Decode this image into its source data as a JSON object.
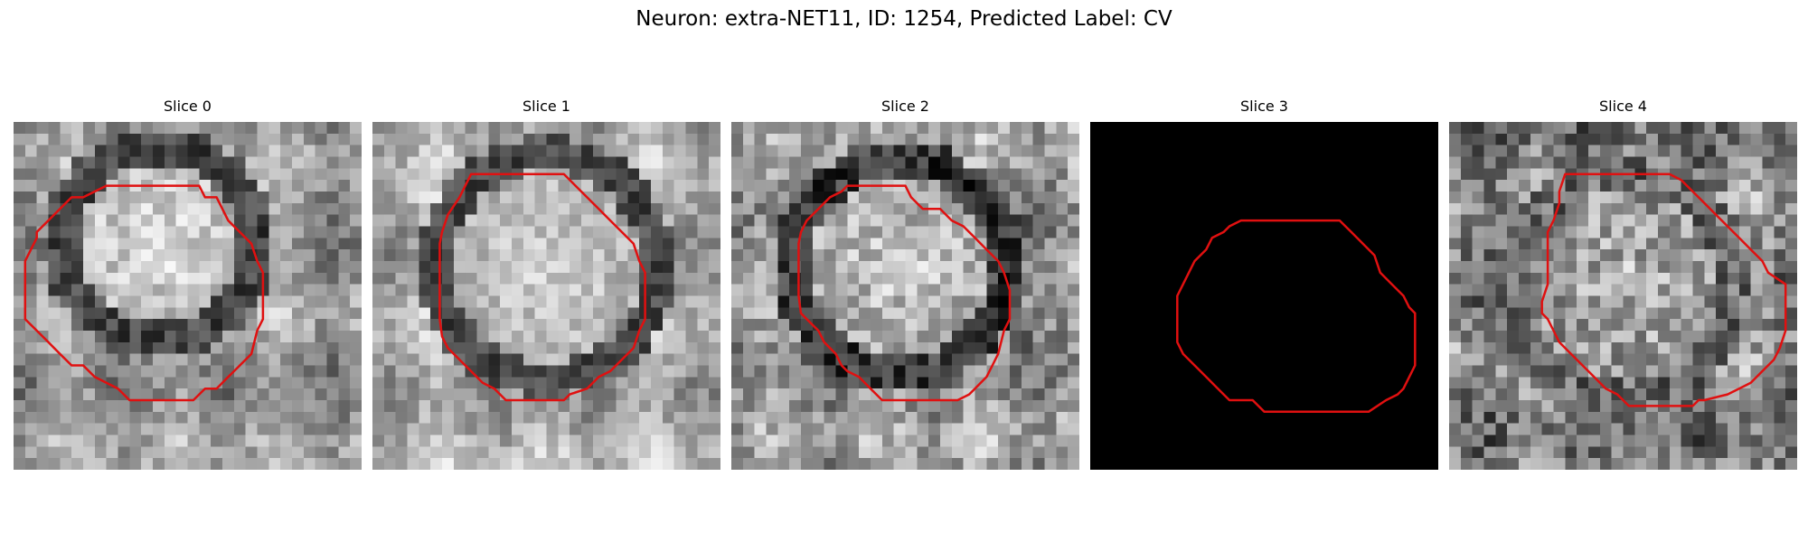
{
  "figure": {
    "title": "Neuron: extra-NET11, ID: 1254, Predicted Label: CV"
  },
  "panels": [
    {
      "title": "Slice 0"
    },
    {
      "title": "Slice 1"
    },
    {
      "title": "Slice 2"
    },
    {
      "title": "Slice 3"
    },
    {
      "title": "Slice 4"
    }
  ],
  "colors": {
    "contour": "#e01010",
    "background": "#ffffff"
  }
}
